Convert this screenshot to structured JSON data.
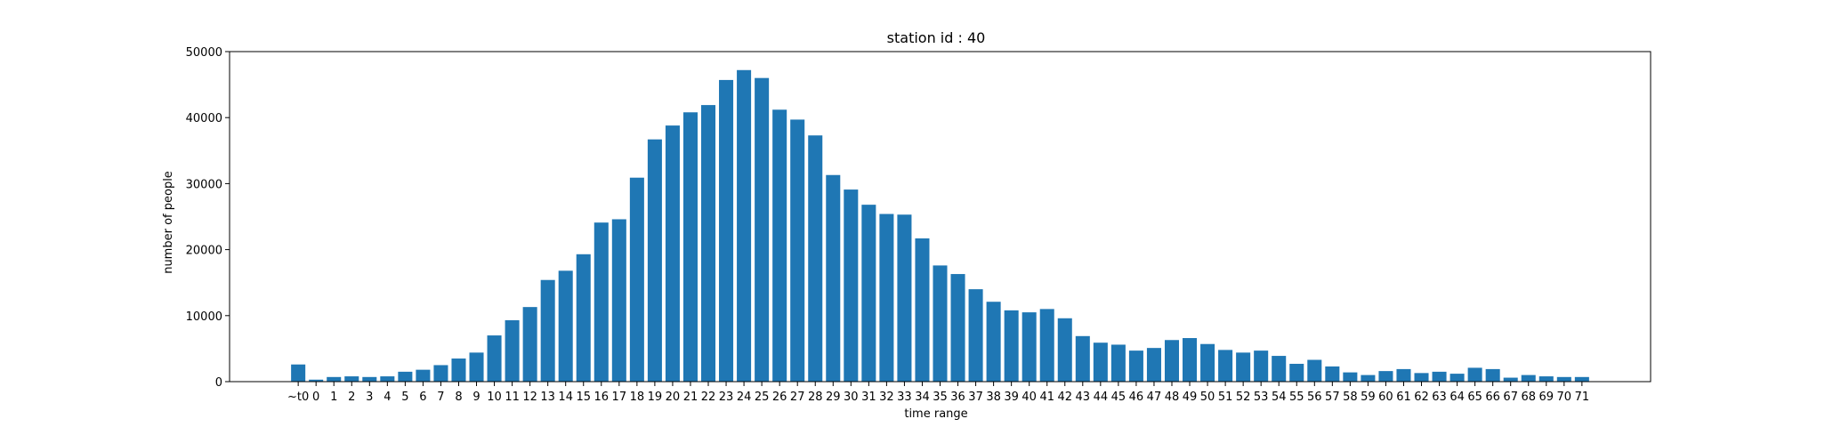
{
  "chart_data": {
    "type": "bar",
    "title": "station id : 40",
    "xlabel": "time range",
    "ylabel": "number of people",
    "ylim": [
      0,
      50000
    ],
    "yticks": [
      0,
      10000,
      20000,
      30000,
      40000,
      50000
    ],
    "grid": false,
    "bar_color": "#1f77b4",
    "categories": [
      "~t0",
      "0",
      "1",
      "2",
      "3",
      "4",
      "5",
      "6",
      "7",
      "8",
      "9",
      "10",
      "11",
      "12",
      "13",
      "14",
      "15",
      "16",
      "17",
      "18",
      "19",
      "20",
      "21",
      "22",
      "23",
      "24",
      "25",
      "26",
      "27",
      "28",
      "29",
      "30",
      "31",
      "32",
      "33",
      "34",
      "35",
      "36",
      "37",
      "38",
      "39",
      "40",
      "41",
      "42",
      "43",
      "44",
      "45",
      "46",
      "47",
      "48",
      "49",
      "50",
      "51",
      "52",
      "53",
      "54",
      "55",
      "56",
      "57",
      "58",
      "59",
      "60",
      "61",
      "62",
      "63",
      "64",
      "65",
      "66",
      "67",
      "68",
      "69",
      "70",
      "71"
    ],
    "values": [
      2600,
      300,
      700,
      800,
      700,
      800,
      1500,
      1800,
      2500,
      3500,
      4400,
      7000,
      9300,
      11300,
      15400,
      16800,
      19300,
      24100,
      24600,
      30900,
      36700,
      38800,
      40800,
      41900,
      45700,
      47200,
      46000,
      41200,
      39700,
      37300,
      31300,
      29100,
      26800,
      25400,
      25300,
      21700,
      17600,
      16300,
      14000,
      12100,
      10800,
      10500,
      11000,
      9600,
      6900,
      5900,
      5600,
      4700,
      5100,
      6300,
      6600,
      5700,
      4800,
      4400,
      4700,
      3900,
      2700,
      3300,
      2300,
      1400,
      1000,
      1600,
      1900,
      1300,
      1500,
      1200,
      2100,
      1900,
      600,
      1000,
      800,
      700,
      700
    ]
  }
}
